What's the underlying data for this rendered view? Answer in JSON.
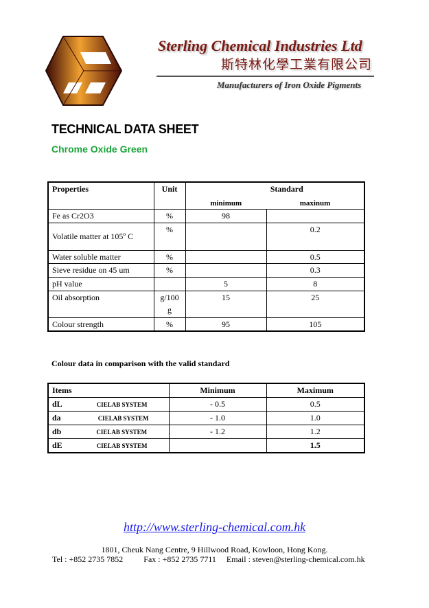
{
  "header": {
    "company_en": "Sterling Chemical Industries Ltd",
    "company_zh": "斯特林化學工業有限公司",
    "tagline": "Manufacturers of Iron Oxide Pigments",
    "logo": "hexagon-cube-logo",
    "brand_color": "#7a1a14"
  },
  "document": {
    "title": "TECHNICAL DATA SHEET",
    "product": "Chrome Oxide Green",
    "product_color": "#1aa33a"
  },
  "properties_table": {
    "headers": {
      "properties": "Properties",
      "unit": "Unit",
      "standard": "Standard",
      "minimum": "minimum",
      "maximum": "maxinum"
    },
    "rows": [
      {
        "property": "Fe as Cr2O3",
        "unit": "%",
        "min": "98",
        "max": ""
      },
      {
        "property": "Volatile matter at 105º C",
        "unit": "%",
        "min": "",
        "max": "0.2"
      },
      {
        "property": "Water soluble matter",
        "unit": "%",
        "min": "",
        "max": "0.5"
      },
      {
        "property": "Sieve residue on 45 um",
        "unit": "%",
        "min": "",
        "max": "0.3"
      },
      {
        "property": "pH value",
        "unit": "",
        "min": "5",
        "max": "8"
      },
      {
        "property": "Oil absorption",
        "unit": "g/100 g",
        "min": "15",
        "max": "25"
      },
      {
        "property": "Colour strength",
        "unit": "%",
        "min": "95",
        "max": "105"
      }
    ]
  },
  "colour_section": {
    "heading": "Colour data in comparison with the valid standard",
    "headers": {
      "items": "Items",
      "minimum": "Minimum",
      "maximum": "Maximum"
    },
    "rows": [
      {
        "item": "dL",
        "system": "CIELAB SYSTEM",
        "min": "- 0.5",
        "max": "0.5"
      },
      {
        "item": "da",
        "system": "CIELAB SYSTEM",
        "min": "- 1.0",
        "max": "1.0"
      },
      {
        "item": "db",
        "system": "CIELAB SYSTEM",
        "min": "- 1.2",
        "max": "1.2"
      },
      {
        "item": "dE",
        "system": "CIELAB SYSTEM",
        "min": "",
        "max": "1.5"
      }
    ]
  },
  "footer": {
    "url": "http://www.sterling-chemical.com.hk",
    "address": "1801, Cheuk Nang Centre, 9 Hillwood Road, Kowloon, Hong Kong.",
    "tel": "Tel : +852 2735 7852",
    "fax": "Fax : +852 2735 7711",
    "email": "Email : steven@sterling-chemical.com.hk"
  }
}
